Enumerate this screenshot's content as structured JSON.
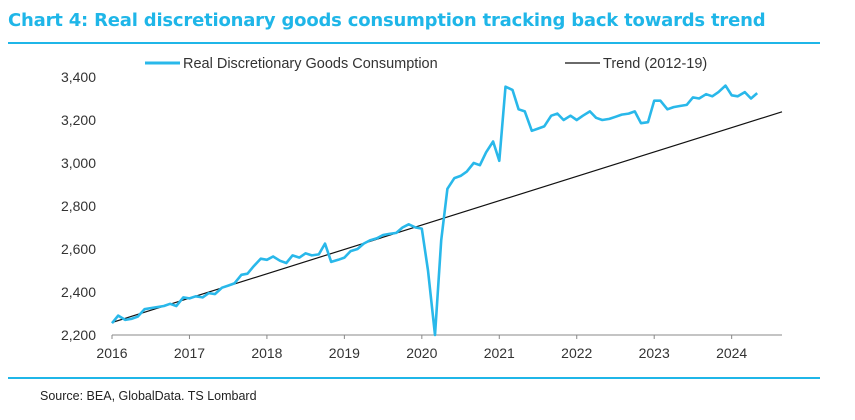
{
  "title": "Chart 4: Real discretionary goods consumption tracking back towards trend",
  "source": "Source: BEA, GlobalData. TS Lombard",
  "colors": {
    "accent": "#1fb6e8",
    "consumption": "#29b8ea",
    "trend": "#111111"
  },
  "chart_data": {
    "type": "line",
    "title": "Chart 4: Real discretionary goods consumption tracking back towards trend",
    "xlabel": "",
    "ylabel": "",
    "xlim": [
      2016,
      2024.65
    ],
    "ylim": [
      2200,
      3400
    ],
    "x_ticks": [
      "2016",
      "2017",
      "2018",
      "2019",
      "2020",
      "2021",
      "2022",
      "2023",
      "2024"
    ],
    "y_ticks": [
      "2,200",
      "2,400",
      "2,600",
      "2,800",
      "3,000",
      "3,200",
      "3,400"
    ],
    "y_tick_values": [
      2200,
      2400,
      2600,
      2800,
      3000,
      3200,
      3400
    ],
    "grid": false,
    "legend": "top",
    "series": [
      {
        "name": "Real Discretionary Goods Consumption",
        "x": [
          2016.0,
          2016.08,
          2016.17,
          2016.25,
          2016.33,
          2016.42,
          2016.5,
          2016.58,
          2016.67,
          2016.75,
          2016.83,
          2016.92,
          2017.0,
          2017.08,
          2017.17,
          2017.25,
          2017.33,
          2017.42,
          2017.5,
          2017.58,
          2017.67,
          2017.75,
          2017.83,
          2017.92,
          2018.0,
          2018.08,
          2018.17,
          2018.25,
          2018.33,
          2018.42,
          2018.5,
          2018.58,
          2018.67,
          2018.75,
          2018.83,
          2018.92,
          2019.0,
          2019.08,
          2019.17,
          2019.25,
          2019.33,
          2019.42,
          2019.5,
          2019.58,
          2019.67,
          2019.75,
          2019.83,
          2019.92,
          2020.0,
          2020.08,
          2020.17,
          2020.25,
          2020.33,
          2020.42,
          2020.5,
          2020.58,
          2020.67,
          2020.75,
          2020.83,
          2020.92,
          2021.0,
          2021.08,
          2021.17,
          2021.25,
          2021.33,
          2021.42,
          2021.5,
          2021.58,
          2021.67,
          2021.75,
          2021.83,
          2021.92,
          2022.0,
          2022.08,
          2022.17,
          2022.25,
          2022.33,
          2022.42,
          2022.5,
          2022.58,
          2022.67,
          2022.75,
          2022.83,
          2022.92,
          2023.0,
          2023.08,
          2023.17,
          2023.25,
          2023.33,
          2023.42,
          2023.5,
          2023.58,
          2023.67,
          2023.75,
          2023.83,
          2023.92,
          2024.0,
          2024.08,
          2024.17,
          2024.25,
          2024.33
        ],
        "values": [
          2255,
          2290,
          2270,
          2275,
          2285,
          2320,
          2325,
          2330,
          2335,
          2345,
          2335,
          2375,
          2370,
          2380,
          2375,
          2395,
          2390,
          2420,
          2430,
          2440,
          2480,
          2485,
          2520,
          2555,
          2550,
          2565,
          2545,
          2535,
          2570,
          2560,
          2580,
          2570,
          2575,
          2625,
          2540,
          2550,
          2560,
          2590,
          2600,
          2625,
          2640,
          2650,
          2665,
          2670,
          2675,
          2700,
          2715,
          2700,
          2695,
          2500,
          2200,
          2640,
          2880,
          2930,
          2940,
          2960,
          3000,
          2990,
          3050,
          3100,
          3010,
          3355,
          3340,
          3250,
          3240,
          3150,
          3160,
          3170,
          3220,
          3230,
          3200,
          3220,
          3200,
          3220,
          3240,
          3210,
          3200,
          3205,
          3215,
          3225,
          3230,
          3240,
          3185,
          3190,
          3290,
          3290,
          3250,
          3260,
          3265,
          3270,
          3305,
          3300,
          3320,
          3310,
          3330,
          3360,
          3315,
          3310,
          3330,
          3300,
          3325
        ]
      },
      {
        "name": "Trend (2012-19)",
        "x": [
          2016.0,
          2024.65
        ],
        "values": [
          2258,
          3238
        ]
      }
    ]
  }
}
